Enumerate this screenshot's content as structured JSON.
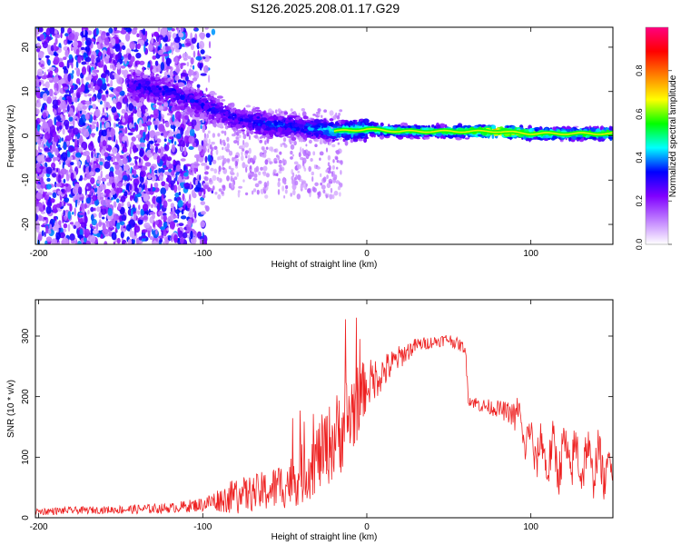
{
  "title": "S126.2025.208.01.17.G29",
  "chart_data": [
    {
      "type": "heatmap",
      "title": "",
      "xlabel": "Height of straight line (km)",
      "ylabel": "Frequency (Hz)",
      "xlim": [
        -202,
        150
      ],
      "ylim": [
        -24.5,
        24.5
      ],
      "xticks": [
        -200,
        -100,
        0,
        100
      ],
      "yticks": [
        -20,
        -10,
        0,
        10,
        20
      ],
      "colorbar": {
        "label": "Normalized spectral amplitude",
        "range": [
          0,
          1
        ],
        "ticks": [
          "0.0",
          "0.2",
          "0.4",
          "0.6",
          "0.8"
        ],
        "colors": [
          "#ffffff",
          "#c080ff",
          "#8000ff",
          "#0000ff",
          "#00ffff",
          "#00ff00",
          "#ffff00",
          "#ff8000",
          "#ff0000",
          "#ff0080"
        ]
      },
      "ridge": {
        "x": [
          -140,
          -120,
          -100,
          -80,
          -60,
          -40,
          -20,
          0,
          20,
          40,
          60,
          80,
          100,
          120,
          150
        ],
        "frequency": [
          11,
          10,
          7,
          4,
          2.5,
          2,
          1,
          1.5,
          1,
          1,
          1,
          1,
          0.5,
          0.5,
          0.5
        ],
        "amplitude": [
          0.3,
          0.3,
          0.3,
          0.3,
          0.35,
          0.35,
          0.45,
          0.55,
          0.55,
          0.55,
          0.6,
          0.8,
          0.6,
          0.55,
          0.6
        ]
      }
    },
    {
      "type": "line",
      "title": "",
      "xlabel": "Height of straight line (km)",
      "ylabel": "SNR (10 * v/v)",
      "xlim": [
        -202,
        150
      ],
      "ylim": [
        0,
        360
      ],
      "xticks": [
        -200,
        -100,
        0,
        100
      ],
      "yticks": [
        0,
        100,
        200,
        300
      ],
      "series": [
        {
          "color": "#ee2222",
          "envelope": {
            "x": [
              -202,
              -180,
              -160,
              -140,
              -120,
              -100,
              -90,
              -80,
              -70,
              -60,
              -50,
              -40,
              -30,
              -20,
              -10,
              0,
              10,
              20,
              30,
              40,
              50,
              60,
              62,
              70,
              80,
              90,
              100,
              110,
              120,
              130,
              140,
              150
            ],
            "mean": [
              10,
              12,
              13,
              14,
              16,
              22,
              30,
              35,
              40,
              45,
              55,
              70,
              100,
              130,
              170,
              220,
              240,
              265,
              285,
              290,
              295,
              280,
              195,
              185,
              180,
              170,
              120,
              100,
              100,
              95,
              90,
              75
            ],
            "spread": [
              6,
              6,
              6,
              8,
              8,
              12,
              20,
              30,
              30,
              35,
              40,
              50,
              60,
              70,
              80,
              40,
              30,
              20,
              12,
              10,
              10,
              10,
              10,
              12,
              14,
              20,
              30,
              35,
              40,
              40,
              35,
              25
            ]
          }
        }
      ]
    }
  ]
}
